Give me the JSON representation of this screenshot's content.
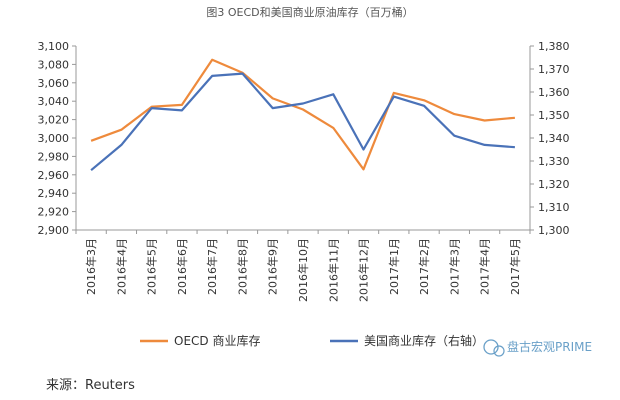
{
  "chart_data": {
    "type": "line",
    "title": "图3  OECD和美国商业原油库存（百万桶）",
    "categories": [
      "2016年3月",
      "2016年4月",
      "2016年5月",
      "2016年6月",
      "2016年7月",
      "2016年8月",
      "2016年9月",
      "2016年10月",
      "2016年11月",
      "2016年12月",
      "2017年1月",
      "2017年2月",
      "2017年3月",
      "2017年4月",
      "2017年5月"
    ],
    "y_left": {
      "min": 2900,
      "max": 3100,
      "step": 20
    },
    "y_right": {
      "min": 1300,
      "max": 1380,
      "step": 10
    },
    "y_left_ticks": [
      "2,900",
      "2,920",
      "2,940",
      "2,960",
      "2,980",
      "3,000",
      "3,020",
      "3,040",
      "3,060",
      "3,080",
      "3,100"
    ],
    "y_right_ticks": [
      "1,300",
      "1,310",
      "1,320",
      "1,330",
      "1,340",
      "1,350",
      "1,360",
      "1,370",
      "1,380"
    ],
    "series": [
      {
        "name": "OECD 商业库存",
        "axis": "left",
        "color": "#ee8a3c",
        "values": [
          2997,
          3009,
          3034,
          3036,
          3085,
          3071,
          3043,
          3031,
          3011,
          2966,
          3049,
          3041,
          3026,
          3019,
          3022
        ]
      },
      {
        "name": "美国商业库存（右轴）",
        "axis": "right",
        "color": "#4a72b8",
        "values": [
          1326,
          1337,
          1353,
          1352,
          1367,
          1368,
          1353,
          1355,
          1359,
          1335,
          1358,
          1354,
          1341,
          1337,
          1336
        ]
      }
    ],
    "grid": false,
    "legend_position": "bottom"
  },
  "source": "来源：Reuters",
  "watermark": "盘古宏观PRIME",
  "colors": {
    "axis": "#999999",
    "text": "#333333"
  }
}
